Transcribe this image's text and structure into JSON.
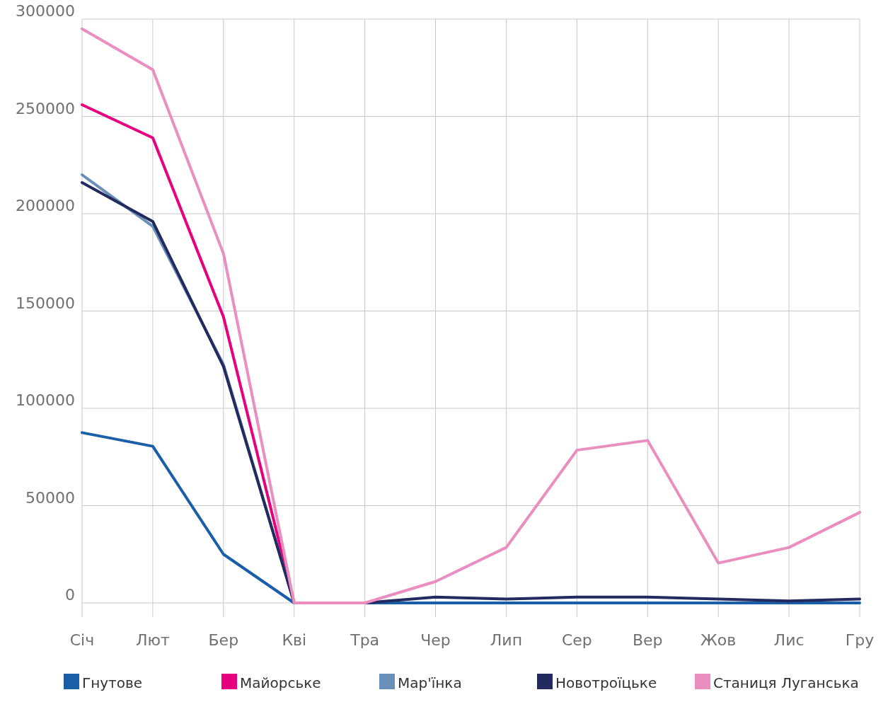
{
  "chart_data": {
    "type": "line",
    "categories": [
      "Січ",
      "Лют",
      "Бер",
      "Кві",
      "Тра",
      "Чер",
      "Лип",
      "Сер",
      "Вер",
      "Жов",
      "Лис",
      "Гру"
    ],
    "ylim": [
      0,
      300000
    ],
    "yticks": [
      0,
      50000,
      100000,
      150000,
      200000,
      250000,
      300000
    ],
    "grid": true,
    "legend": "bottom",
    "series": [
      {
        "name": "Гнутове",
        "color": "#1a5ea8",
        "values": [
          87500,
          80500,
          25000,
          0,
          0,
          0,
          0,
          0,
          0,
          0,
          0,
          0
        ]
      },
      {
        "name": "Майорське",
        "color": "#e6007e",
        "values": [
          256000,
          239000,
          147000,
          0,
          0,
          null,
          null,
          null,
          null,
          null,
          null,
          null
        ]
      },
      {
        "name": "Мар'їнка",
        "color": "#6a8fb8",
        "values": [
          220000,
          193500,
          122500,
          0,
          0,
          null,
          null,
          null,
          null,
          null,
          null,
          null
        ]
      },
      {
        "name": "Новотроїцьке",
        "color": "#232a5e",
        "values": [
          216000,
          196000,
          121500,
          0,
          0,
          3000,
          2000,
          3000,
          3000,
          2000,
          1000,
          2000
        ]
      },
      {
        "name": "Станиця Луганська",
        "color": "#ea8dbf",
        "values": [
          295000,
          274000,
          179500,
          0,
          0,
          11000,
          28500,
          78500,
          83500,
          20500,
          28500,
          46500
        ]
      }
    ]
  }
}
